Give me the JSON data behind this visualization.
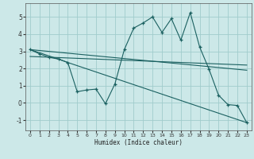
{
  "title": "",
  "xlabel": "Humidex (Indice chaleur)",
  "bg_color": "#cce8e8",
  "grid_color": "#a0cccc",
  "line_color": "#1a6060",
  "xlim": [
    -0.5,
    23.5
  ],
  "ylim": [
    -1.6,
    5.8
  ],
  "xticks": [
    0,
    1,
    2,
    3,
    4,
    5,
    6,
    7,
    8,
    9,
    10,
    11,
    12,
    13,
    14,
    15,
    16,
    17,
    18,
    19,
    20,
    21,
    22,
    23
  ],
  "yticks": [
    -1,
    0,
    1,
    2,
    3,
    4,
    5
  ],
  "main_x": [
    0,
    1,
    2,
    3,
    4,
    5,
    6,
    7,
    8,
    9,
    10,
    11,
    12,
    13,
    14,
    15,
    16,
    17,
    18,
    19,
    20,
    21,
    22,
    23
  ],
  "main_y": [
    3.1,
    2.85,
    2.65,
    2.55,
    2.35,
    0.65,
    0.75,
    0.8,
    -0.05,
    1.1,
    3.1,
    4.35,
    4.65,
    5.0,
    4.1,
    4.9,
    3.65,
    5.25,
    3.25,
    1.95,
    0.45,
    -0.1,
    -0.15,
    -1.15
  ],
  "trend1_x": [
    0,
    3,
    4,
    23
  ],
  "trend1_y": [
    3.1,
    2.55,
    2.35,
    -1.15
  ],
  "trend2_x": [
    0,
    23
  ],
  "trend2_y": [
    3.1,
    1.9
  ],
  "trend3_x": [
    0,
    23
  ],
  "trend3_y": [
    2.7,
    2.2
  ]
}
